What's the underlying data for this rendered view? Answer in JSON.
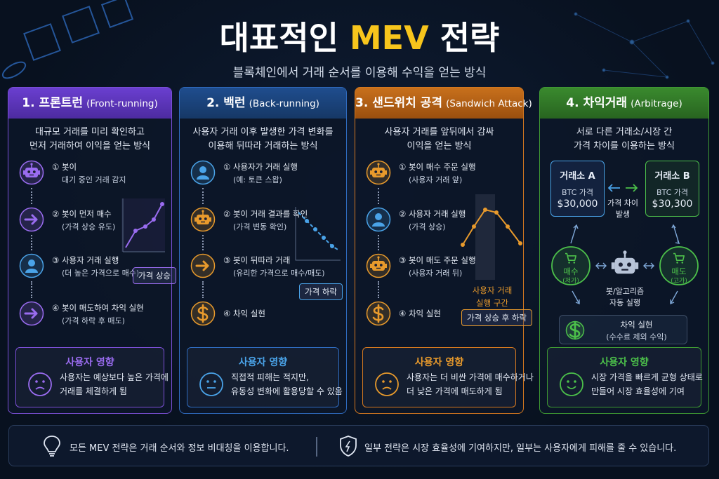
{
  "header": {
    "title_start": "대표적인",
    "title_highlight": "MEV",
    "title_end": "전략",
    "subtitle": "블록체인에서 거래 순서를 이용해 수익을 얻는 방식"
  },
  "cards": [
    {
      "title": "1. 프론트런",
      "title_en": "(Front-running)",
      "description": [
        "대규모 거래를 미리 확인하고",
        "먼저 거래하여 이익을 얻는 방식"
      ],
      "steps": [
        {
          "label": "① 봇이",
          "detail": "대기 중인 거래 감지"
        },
        {
          "label": "② 봇이 먼저 매수",
          "detail": "(가격 상승 유도)"
        },
        {
          "label": "③ 사용자 거래 실행",
          "detail": "(더 높은 가격으로 매수)"
        },
        {
          "label": "④ 봇이 매도하여 차익 실현",
          "detail": "(가격 하락 후 매도)"
        }
      ],
      "chart_tag": "가격 상승",
      "impact": {
        "title": "사용자 영향",
        "text": [
          "사용자는 예상보다 높은 가격에",
          "거래를 체결하게 됨"
        ]
      }
    },
    {
      "title": "2. 백런",
      "title_en": "(Back-running)",
      "description": [
        "사용자 거래 이후 발생한 가격 변화를",
        "이용해 뒤따라 거래하는 방식"
      ],
      "steps": [
        {
          "label": "① 사용자가 거래 실행",
          "detail": "(예: 토큰 스왑)"
        },
        {
          "label": "② 봇이 거래 결과를 확인",
          "detail": "(가격 변동 확인)"
        },
        {
          "label": "③ 봇이 뒤따라 거래",
          "detail": "(유리한 가격으로 매수/매도)"
        },
        {
          "label": "④ 차익 실현"
        }
      ],
      "chart_tag": "가격 하락",
      "impact": {
        "title": "사용자 영향",
        "text": [
          "직접적 피해는 적지만,",
          "유동성 변화에 활용당할 수 있음"
        ]
      }
    },
    {
      "title": "3. 샌드위치 공격",
      "title_en": "(Sandwich Attack)",
      "description": [
        "사용자 거래를 앞뒤에서 감싸",
        "이익을 얻는 방식"
      ],
      "steps": [
        {
          "label": "① 봇이 매수 주문 실행",
          "detail": "(사용자 거래 앞)"
        },
        {
          "label": "② 사용자 거래 실행",
          "detail": "(가격 상승)"
        },
        {
          "label": "③ 봇이 매도 주문 실행",
          "detail": "(사용자 거래 뒤)"
        },
        {
          "label": "④ 차익 실현"
        }
      ],
      "chart_zone_label": [
        "사용자 거래",
        "실행 구간"
      ],
      "chart_tag": "가격 상승 후 하락",
      "impact": {
        "title": "사용자 영향",
        "text": [
          "사용자는 더 비싼 가격에 매수하거나",
          "더 낮은 가격에 매도하게 됨"
        ]
      }
    },
    {
      "title": "4. 차익거래",
      "title_en": "(Arbitrage)",
      "description": [
        "서로 다른 거래소/시장 간",
        "가격 차이를 이용하는 방식"
      ],
      "exchanges": [
        {
          "name": "거래소 A",
          "asset": "BTC 가격",
          "price": "$30,000"
        },
        {
          "name": "거래소 B",
          "asset": "BTC 가격",
          "price": "$30,300"
        }
      ],
      "gap_label": [
        "가격 차이",
        "발생"
      ],
      "buy": {
        "label": "매수",
        "sub": "(저가)"
      },
      "sell": {
        "label": "매도",
        "sub": "(고가)"
      },
      "bot_label": [
        "봇/알고리즘",
        "자동 실행"
      ],
      "profit": [
        "차익 실현",
        "(수수료 제외 수익)"
      ],
      "impact": {
        "title": "사용자 영향",
        "text": [
          "시장 가격을 빠르게 균형 상태로",
          "만들어 시장 효율성에 기여"
        ]
      }
    }
  ],
  "footer": [
    "모든 MEV 전략은 거래 순서와 정보 비대칭을 이용합니다.",
    "일부 전략은 시장 효율성에 기여하지만, 일부는 사용자에게 피해를 줄 수 있습니다."
  ]
}
